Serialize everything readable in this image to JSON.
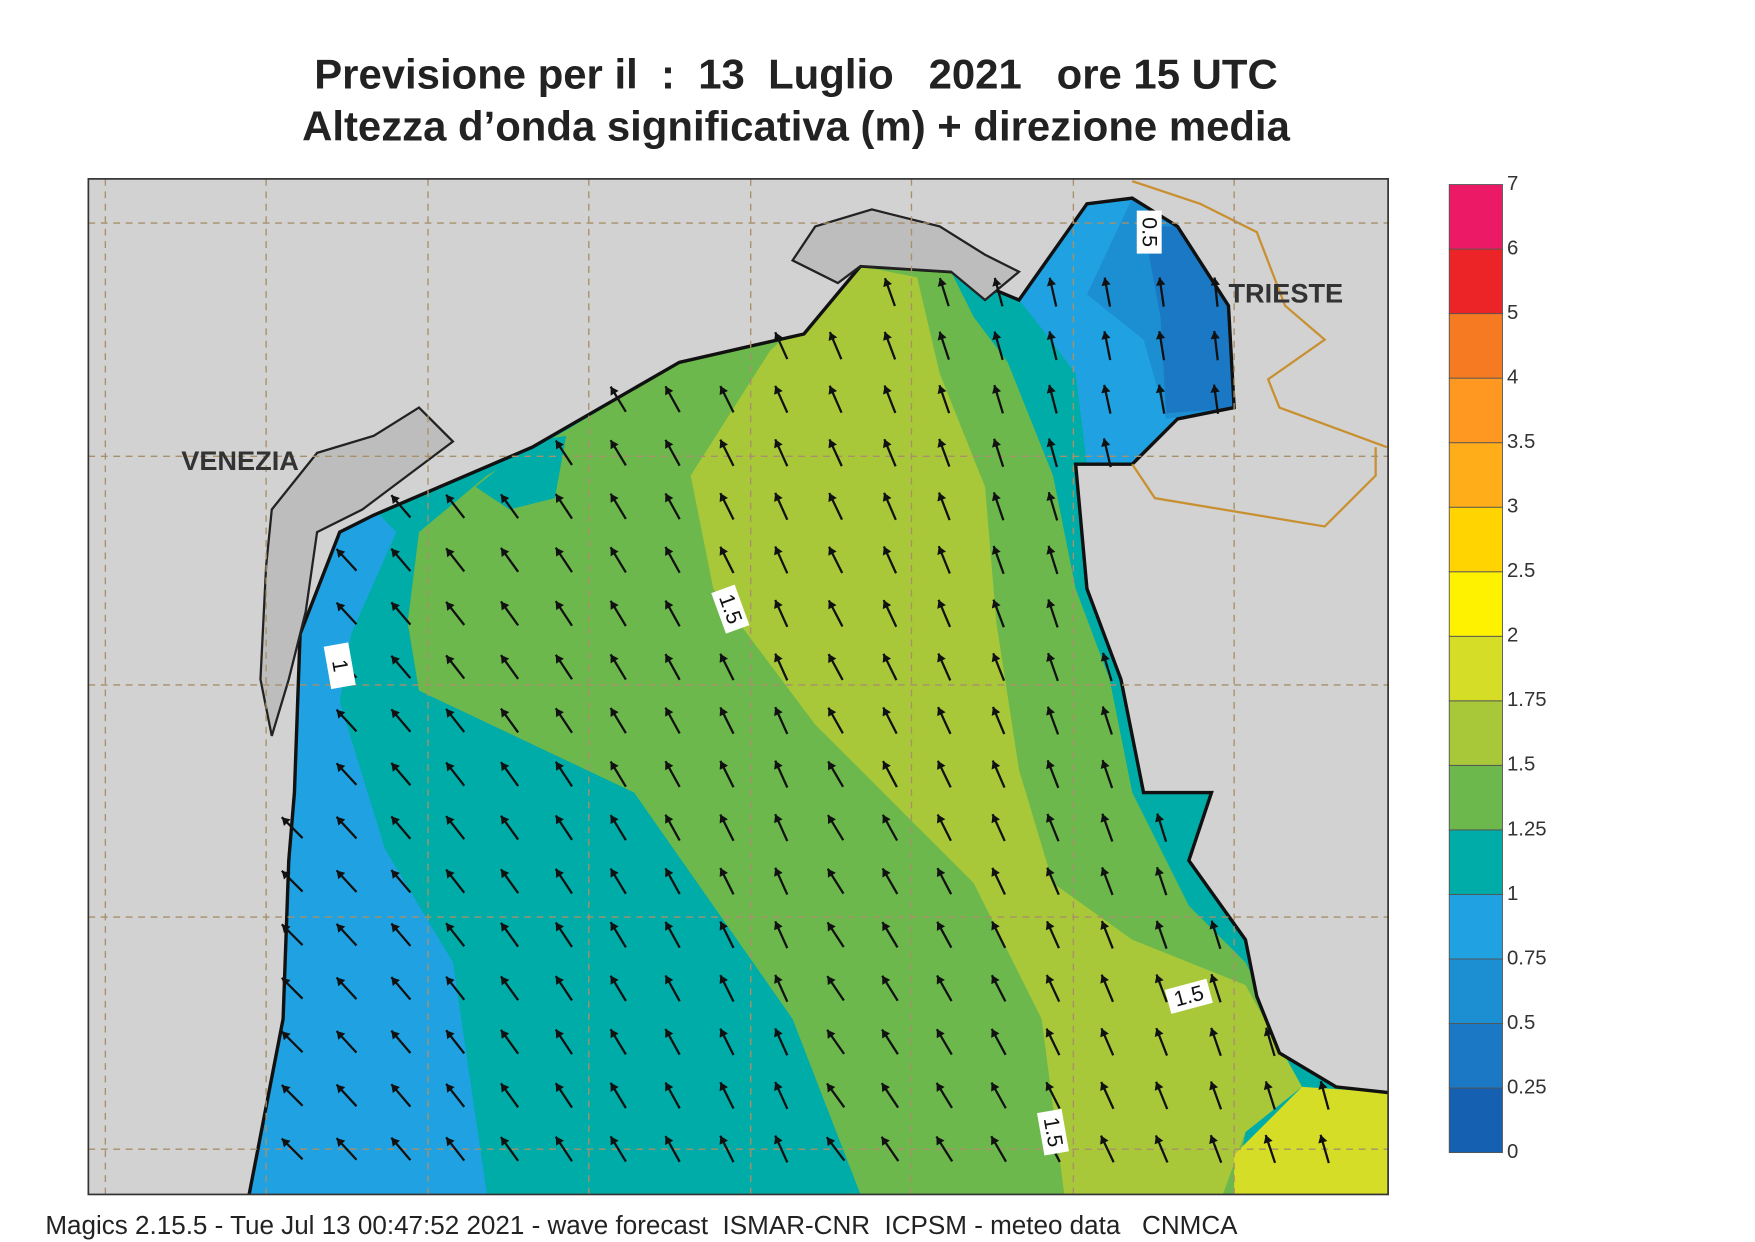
{
  "title": [
    "Previsione per il  :  13  Luglio   2021   ore 15 UTC",
    "Altezza d’onda significativa (m) + direzione media"
  ],
  "places": [
    {
      "label": "VENEZIA"
    },
    {
      "label": "TRIESTE"
    }
  ],
  "contour_labels": [
    "0.5",
    "1",
    "1.5",
    "1.5",
    "1.5"
  ],
  "legend": {
    "levels": [
      0,
      0.25,
      0.5,
      0.75,
      1,
      1.25,
      1.5,
      1.75,
      2,
      2.5,
      3,
      3.5,
      4,
      5,
      6,
      7
    ],
    "colors": [
      "#1560b0",
      "#1a78c4",
      "#1c8ed2",
      "#20a2e2",
      "#00aca8",
      "#6cb84c",
      "#a8c83a",
      "#d6dd26",
      "#fff200",
      "#ffd400",
      "#ffae1a",
      "#ff9820",
      "#f57a22",
      "#ec2428",
      "#ec1a66"
    ]
  },
  "footer": "Magics 2.15.5 - Tue Jul 13 00:47:52 2021 - wave forecast  ISMAR-CNR  ICPSM - meteo data   CNMCA"
}
